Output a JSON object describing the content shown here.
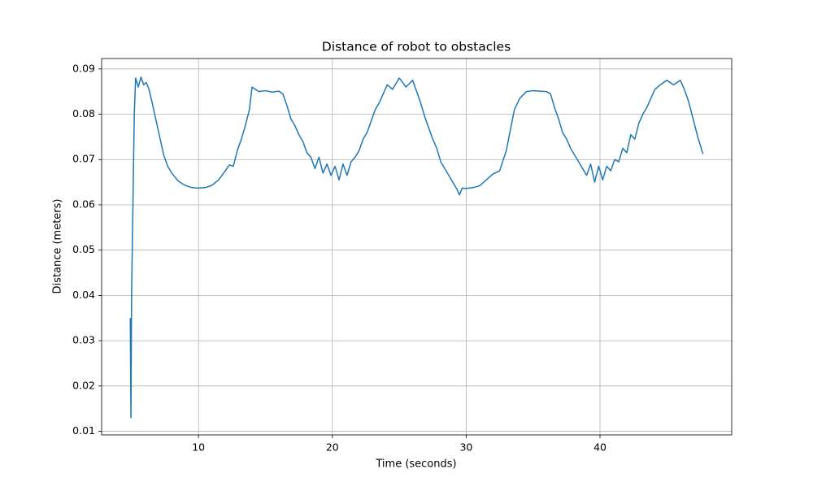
{
  "chart_data": {
    "type": "line",
    "title": "Distance of robot to obstacles",
    "x_label": "Time (seconds)",
    "y_label": "Distance (meters)",
    "xlim": [
      2.76,
      49.84
    ],
    "ylim": [
      0.0092,
      0.0923
    ],
    "xticks": [
      10,
      20,
      30,
      40
    ],
    "yticks": [
      0.01,
      0.02,
      0.03,
      0.04,
      0.05,
      0.06,
      0.07,
      0.08,
      0.09
    ],
    "grid": true,
    "x": [
      4.9,
      4.95,
      5.0,
      5.1,
      5.2,
      5.3,
      5.5,
      5.7,
      5.9,
      6.1,
      6.3,
      6.5,
      6.8,
      7.1,
      7.4,
      7.7,
      8.0,
      8.5,
      9.0,
      9.5,
      10.0,
      10.5,
      11.0,
      11.5,
      12.0,
      12.3,
      12.6,
      12.9,
      13.2,
      13.5,
      13.8,
      14.0,
      14.5,
      15.0,
      15.5,
      16.0,
      16.3,
      16.6,
      16.9,
      17.2,
      17.5,
      17.8,
      18.1,
      18.4,
      18.7,
      19.0,
      19.3,
      19.6,
      19.9,
      20.2,
      20.5,
      20.8,
      21.1,
      21.4,
      21.7,
      22.0,
      22.3,
      22.6,
      22.9,
      23.2,
      23.5,
      23.8,
      24.1,
      24.5,
      25.0,
      25.5,
      26.0,
      26.3,
      26.6,
      26.9,
      27.2,
      27.5,
      27.8,
      28.1,
      28.4,
      28.7,
      29.0,
      29.3,
      29.5,
      29.7,
      30.0,
      30.5,
      31.0,
      31.5,
      32.0,
      32.5,
      33.0,
      33.3,
      33.6,
      34.0,
      34.5,
      35.0,
      35.5,
      36.0,
      36.3,
      36.6,
      36.9,
      37.2,
      37.5,
      37.8,
      38.1,
      38.4,
      38.7,
      39.0,
      39.3,
      39.6,
      39.9,
      40.2,
      40.5,
      40.8,
      41.1,
      41.4,
      41.7,
      42.0,
      42.3,
      42.6,
      42.9,
      43.2,
      43.5,
      43.8,
      44.1,
      44.5,
      45.0,
      45.5,
      46.0,
      46.3,
      46.6,
      47.0,
      47.3,
      47.7
    ],
    "series": [
      {
        "color": "#1f77b4",
        "values": [
          0.035,
          0.013,
          0.04,
          0.06,
          0.08,
          0.088,
          0.086,
          0.0882,
          0.0865,
          0.087,
          0.0855,
          0.083,
          0.079,
          0.075,
          0.071,
          0.0685,
          0.067,
          0.0652,
          0.0643,
          0.0638,
          0.0637,
          0.0638,
          0.0643,
          0.0655,
          0.0675,
          0.0688,
          0.0685,
          0.072,
          0.0745,
          0.0775,
          0.081,
          0.086,
          0.085,
          0.0852,
          0.0849,
          0.0851,
          0.0845,
          0.082,
          0.079,
          0.0775,
          0.0755,
          0.074,
          0.0715,
          0.0705,
          0.068,
          0.0705,
          0.067,
          0.069,
          0.0665,
          0.0685,
          0.0655,
          0.069,
          0.0665,
          0.0695,
          0.0705,
          0.072,
          0.0745,
          0.076,
          0.0785,
          0.081,
          0.0825,
          0.0845,
          0.0865,
          0.0855,
          0.088,
          0.086,
          0.0875,
          0.085,
          0.0825,
          0.0795,
          0.077,
          0.0745,
          0.0725,
          0.0695,
          0.068,
          0.0665,
          0.065,
          0.0635,
          0.0622,
          0.0637,
          0.0636,
          0.0638,
          0.0642,
          0.0655,
          0.0668,
          0.0675,
          0.072,
          0.0765,
          0.081,
          0.0835,
          0.085,
          0.0852,
          0.0851,
          0.085,
          0.0845,
          0.0815,
          0.079,
          0.076,
          0.0745,
          0.0725,
          0.071,
          0.0695,
          0.068,
          0.0665,
          0.069,
          0.065,
          0.0685,
          0.0655,
          0.0685,
          0.0675,
          0.07,
          0.0695,
          0.0725,
          0.0715,
          0.0755,
          0.0745,
          0.078,
          0.08,
          0.0815,
          0.0835,
          0.0855,
          0.0865,
          0.0875,
          0.0865,
          0.0875,
          0.0855,
          0.083,
          0.0785,
          0.075,
          0.0712
        ]
      }
    ]
  }
}
